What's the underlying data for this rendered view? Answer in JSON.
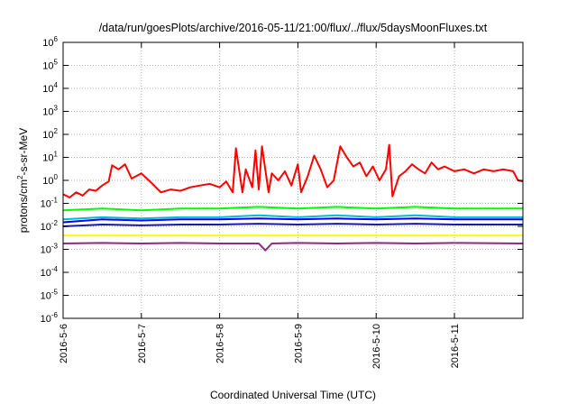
{
  "chart_data": {
    "type": "line",
    "title": "/data/run/goesPlots/archive/2016-05-11/21:00/flux/../flux/5daysMoonFluxes.txt",
    "xlabel": "Coordinated Universal Time (UTC)",
    "ylabel": "protons/cm²-s-sr-MeV",
    "ylabel_parts": {
      "pre": "protons/cm",
      "sup": "2",
      "post": "-s-sr-MeV"
    },
    "y_scale": "log",
    "ylim": [
      1e-06,
      1000000.0
    ],
    "y_ticks": [
      {
        "base": "10",
        "exp": "-6",
        "value": -6
      },
      {
        "base": "10",
        "exp": "-5",
        "value": -5
      },
      {
        "base": "10",
        "exp": "-4",
        "value": -4
      },
      {
        "base": "10",
        "exp": "-3",
        "value": -3
      },
      {
        "base": "10",
        "exp": "-2",
        "value": -2
      },
      {
        "base": "10",
        "exp": "-1",
        "value": -1
      },
      {
        "base": "10",
        "exp": "0",
        "value": 0
      },
      {
        "base": "10",
        "exp": "1",
        "value": 1
      },
      {
        "base": "10",
        "exp": "2",
        "value": 2
      },
      {
        "base": "10",
        "exp": "3",
        "value": 3
      },
      {
        "base": "10",
        "exp": "4",
        "value": 4
      },
      {
        "base": "10",
        "exp": "5",
        "value": 5
      },
      {
        "base": "10",
        "exp": "6",
        "value": 6
      }
    ],
    "x_ticks": [
      "2016-5-6",
      "2016-5-7",
      "2016-5-8",
      "2016-5-9",
      "2016-5-10",
      "2016-5-11"
    ],
    "xlim": [
      "2016-05-06 00:00",
      "2016-05-11 21:00"
    ],
    "grid": true,
    "series": [
      {
        "color": "#ff0000",
        "values": [
          [
            "2016-05-06 00:00",
            0.25
          ],
          [
            "2016-05-06 02:00",
            0.18
          ],
          [
            "2016-05-06 04:00",
            0.3
          ],
          [
            "2016-05-06 06:00",
            0.22
          ],
          [
            "2016-05-06 08:00",
            0.4
          ],
          [
            "2016-05-06 10:00",
            0.35
          ],
          [
            "2016-05-06 12:00",
            0.6
          ],
          [
            "2016-05-06 14:00",
            0.9
          ],
          [
            "2016-05-06 15:00",
            4.5
          ],
          [
            "2016-05-06 17:00",
            3.0
          ],
          [
            "2016-05-06 19:00",
            5.0
          ],
          [
            "2016-05-06 21:00",
            1.2
          ],
          [
            "2016-05-07 00:00",
            2.0
          ],
          [
            "2016-05-07 03:00",
            0.8
          ],
          [
            "2016-05-07 06:00",
            0.3
          ],
          [
            "2016-05-07 09:00",
            0.4
          ],
          [
            "2016-05-07 12:00",
            0.35
          ],
          [
            "2016-05-07 15:00",
            0.5
          ],
          [
            "2016-05-07 18:00",
            0.6
          ],
          [
            "2016-05-07 21:00",
            0.7
          ],
          [
            "2016-05-08 00:00",
            0.5
          ],
          [
            "2016-05-08 02:00",
            0.9
          ],
          [
            "2016-05-08 04:00",
            0.3
          ],
          [
            "2016-05-08 05:00",
            25
          ],
          [
            "2016-05-08 07:00",
            0.3
          ],
          [
            "2016-05-08 08:00",
            3.0
          ],
          [
            "2016-05-08 10:00",
            0.5
          ],
          [
            "2016-05-08 11:00",
            20
          ],
          [
            "2016-05-08 12:00",
            0.4
          ],
          [
            "2016-05-08 13:00",
            30
          ],
          [
            "2016-05-08 15:00",
            0.3
          ],
          [
            "2016-05-08 16:00",
            2.0
          ],
          [
            "2016-05-08 18:00",
            1.0
          ],
          [
            "2016-05-08 20:00",
            2.5
          ],
          [
            "2016-05-08 22:00",
            0.6
          ],
          [
            "2016-05-09 00:00",
            5.0
          ],
          [
            "2016-05-09 01:00",
            0.3
          ],
          [
            "2016-05-09 03:00",
            1.5
          ],
          [
            "2016-05-09 05:00",
            12
          ],
          [
            "2016-05-09 07:00",
            3.0
          ],
          [
            "2016-05-09 09:00",
            0.5
          ],
          [
            "2016-05-09 11:00",
            1.0
          ],
          [
            "2016-05-09 13:00",
            30
          ],
          [
            "2016-05-09 15:00",
            10
          ],
          [
            "2016-05-09 17:00",
            4.0
          ],
          [
            "2016-05-09 19:00",
            6.0
          ],
          [
            "2016-05-09 21:00",
            1.5
          ],
          [
            "2016-05-09 23:00",
            4.0
          ],
          [
            "2016-05-10 01:00",
            1.0
          ],
          [
            "2016-05-10 03:00",
            3.0
          ],
          [
            "2016-05-10 04:00",
            35
          ],
          [
            "2016-05-10 05:00",
            0.2
          ],
          [
            "2016-05-10 07:00",
            1.5
          ],
          [
            "2016-05-10 09:00",
            2.5
          ],
          [
            "2016-05-10 11:00",
            5.0
          ],
          [
            "2016-05-10 13:00",
            3.0
          ],
          [
            "2016-05-10 15:00",
            2.0
          ],
          [
            "2016-05-10 17:00",
            6.0
          ],
          [
            "2016-05-10 19:00",
            3.0
          ],
          [
            "2016-05-10 21:00",
            4.0
          ],
          [
            "2016-05-11 00:00",
            2.5
          ],
          [
            "2016-05-11 03:00",
            3.0
          ],
          [
            "2016-05-11 06:00",
            2.0
          ],
          [
            "2016-05-11 09:00",
            3.0
          ],
          [
            "2016-05-11 12:00",
            2.5
          ],
          [
            "2016-05-11 15:00",
            3.0
          ],
          [
            "2016-05-11 18:00",
            2.5
          ],
          [
            "2016-05-11 19:30",
            1.0
          ],
          [
            "2016-05-11 21:00",
            0.9
          ]
        ]
      },
      {
        "color": "#00ff00",
        "values": [
          [
            "2016-05-06 00:00",
            0.05
          ],
          [
            "2016-05-06 12:00",
            0.06
          ],
          [
            "2016-05-07 00:00",
            0.05
          ],
          [
            "2016-05-07 12:00",
            0.06
          ],
          [
            "2016-05-08 00:00",
            0.06
          ],
          [
            "2016-05-08 12:00",
            0.07
          ],
          [
            "2016-05-09 00:00",
            0.06
          ],
          [
            "2016-05-09 12:00",
            0.07
          ],
          [
            "2016-05-10 00:00",
            0.06
          ],
          [
            "2016-05-10 12:00",
            0.07
          ],
          [
            "2016-05-11 00:00",
            0.06
          ],
          [
            "2016-05-11 21:00",
            0.06
          ]
        ]
      },
      {
        "color": "#00bcd4",
        "values": [
          [
            "2016-05-06 00:00",
            0.02
          ],
          [
            "2016-05-06 12:00",
            0.025
          ],
          [
            "2016-05-07 00:00",
            0.022
          ],
          [
            "2016-05-07 12:00",
            0.025
          ],
          [
            "2016-05-08 00:00",
            0.025
          ],
          [
            "2016-05-08 12:00",
            0.03
          ],
          [
            "2016-05-09 00:00",
            0.025
          ],
          [
            "2016-05-09 12:00",
            0.03
          ],
          [
            "2016-05-10 00:00",
            0.025
          ],
          [
            "2016-05-10 12:00",
            0.03
          ],
          [
            "2016-05-11 00:00",
            0.025
          ],
          [
            "2016-05-11 21:00",
            0.025
          ]
        ]
      },
      {
        "color": "#0000ff",
        "values": [
          [
            "2016-05-06 00:00",
            0.015
          ],
          [
            "2016-05-06 12:00",
            0.02
          ],
          [
            "2016-05-07 00:00",
            0.018
          ],
          [
            "2016-05-07 12:00",
            0.02
          ],
          [
            "2016-05-08 00:00",
            0.02
          ],
          [
            "2016-05-08 12:00",
            0.022
          ],
          [
            "2016-05-09 00:00",
            0.02
          ],
          [
            "2016-05-09 12:00",
            0.022
          ],
          [
            "2016-05-10 00:00",
            0.02
          ],
          [
            "2016-05-10 12:00",
            0.022
          ],
          [
            "2016-05-11 00:00",
            0.02
          ],
          [
            "2016-05-11 21:00",
            0.02
          ]
        ]
      },
      {
        "color": "#1a1aa8",
        "values": [
          [
            "2016-05-06 00:00",
            0.01
          ],
          [
            "2016-05-06 12:00",
            0.012
          ],
          [
            "2016-05-07 00:00",
            0.011
          ],
          [
            "2016-05-07 12:00",
            0.012
          ],
          [
            "2016-05-08 00:00",
            0.012
          ],
          [
            "2016-05-08 12:00",
            0.013
          ],
          [
            "2016-05-09 00:00",
            0.012
          ],
          [
            "2016-05-09 12:00",
            0.013
          ],
          [
            "2016-05-10 00:00",
            0.012
          ],
          [
            "2016-05-10 12:00",
            0.013
          ],
          [
            "2016-05-11 00:00",
            0.012
          ],
          [
            "2016-05-11 21:00",
            0.012
          ]
        ]
      },
      {
        "color": "#ffff00",
        "values": [
          [
            "2016-05-06 00:00",
            0.004
          ],
          [
            "2016-05-07 00:00",
            0.004
          ],
          [
            "2016-05-08 00:00",
            0.004
          ],
          [
            "2016-05-09 00:00",
            0.004
          ],
          [
            "2016-05-10 00:00",
            0.004
          ],
          [
            "2016-05-11 00:00",
            0.004
          ],
          [
            "2016-05-11 21:00",
            0.004
          ]
        ]
      },
      {
        "color": "#8b2e7a",
        "values": [
          [
            "2016-05-06 00:00",
            0.0018
          ],
          [
            "2016-05-06 12:00",
            0.0019
          ],
          [
            "2016-05-07 00:00",
            0.0018
          ],
          [
            "2016-05-07 12:00",
            0.0019
          ],
          [
            "2016-05-08 00:00",
            0.0018
          ],
          [
            "2016-05-08 12:00",
            0.0018
          ],
          [
            "2016-05-08 14:00",
            0.0009
          ],
          [
            "2016-05-08 16:00",
            0.0018
          ],
          [
            "2016-05-09 00:00",
            0.0019
          ],
          [
            "2016-05-09 12:00",
            0.0018
          ],
          [
            "2016-05-10 00:00",
            0.0019
          ],
          [
            "2016-05-10 12:00",
            0.0018
          ],
          [
            "2016-05-11 00:00",
            0.0019
          ],
          [
            "2016-05-11 21:00",
            0.0018
          ]
        ]
      }
    ]
  }
}
